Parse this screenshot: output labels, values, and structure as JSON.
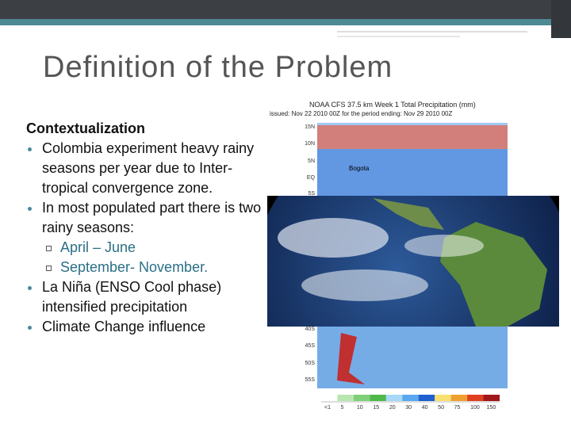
{
  "title": "Definition of the Problem",
  "heading": "Contextualization",
  "bullets": [
    {
      "text": "Colombia experiment heavy rainy seasons per year due to Inter-tropical convergence zone."
    },
    {
      "text": "In most populated part there is two rainy seasons:",
      "sub": [
        "April – June",
        "September- November."
      ]
    },
    {
      "text": "La Niña (ENSO Cool phase) intensified precipitation"
    },
    {
      "text": "Climate Change influence"
    }
  ],
  "map": {
    "caption": [
      "NOAA CFS 37.5 km Week 1 Total Precipitation (mm)",
      "issued: Nov 22 2010 00Z for the period ending: Nov 29 2010 00Z"
    ],
    "city": "Bogota",
    "lat_labels_top": [
      "15N",
      "10N",
      "5N",
      "EQ",
      "5S"
    ],
    "lat_labels_bottom": [
      "40S",
      "45S",
      "50S",
      "55S"
    ],
    "legend": [
      "<1",
      "5",
      "10",
      "15",
      "20",
      "30",
      "40",
      "50",
      "75",
      "100",
      "150"
    ]
  }
}
